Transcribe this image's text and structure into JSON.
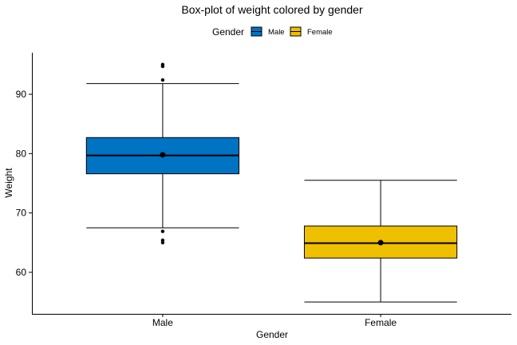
{
  "chart_data": {
    "type": "box",
    "title": "Box-plot of weight colored by gender",
    "xlabel": "Gender",
    "ylabel": "Weight",
    "legend": {
      "title": "Gender",
      "position": "top",
      "items": [
        {
          "name": "Male",
          "color": "#0073C2"
        },
        {
          "name": "Female",
          "color": "#EFC000"
        }
      ]
    },
    "categories": [
      "Male",
      "Female"
    ],
    "ylim": [
      53.0,
      97.0
    ],
    "yticks": [
      60,
      70,
      80,
      90
    ],
    "grid": false,
    "boxes": [
      {
        "category": "Male",
        "color": "#0073C2",
        "whisker_low": 67.5,
        "q1": 76.6,
        "median": 79.7,
        "q3": 82.7,
        "whisker_high": 91.8,
        "mean": 79.8,
        "outliers": [
          65.0,
          65.4,
          66.9,
          92.4,
          94.7,
          95.0
        ]
      },
      {
        "category": "Female",
        "color": "#EFC000",
        "whisker_low": 55.0,
        "q1": 62.4,
        "median": 64.9,
        "q3": 67.8,
        "whisker_high": 75.5,
        "mean": 65.0,
        "outliers": []
      }
    ]
  }
}
